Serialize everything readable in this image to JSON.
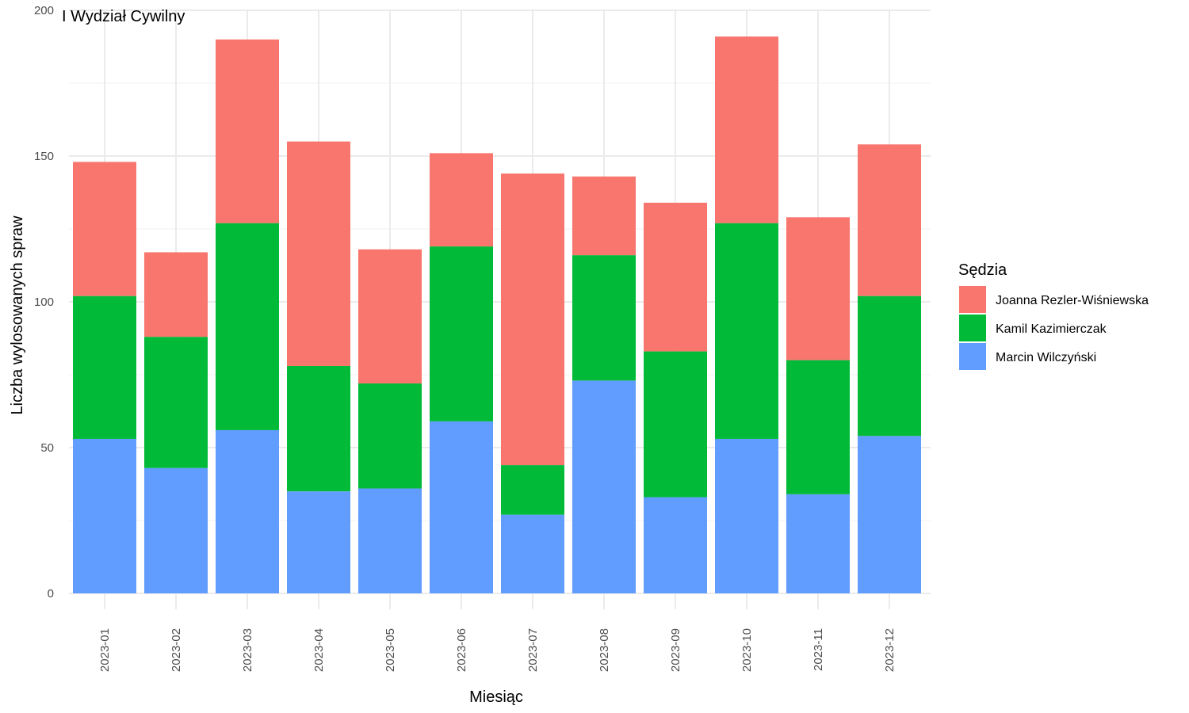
{
  "chart_data": {
    "type": "bar",
    "stacked": true,
    "title": "",
    "facet_label": "I Wydział Cywilny",
    "xlabel": "Miesiąc",
    "ylabel": "Liczba wylosowanych spraw",
    "ylim": [
      0,
      200
    ],
    "y_ticks": [
      0,
      50,
      100,
      150,
      200
    ],
    "grid": true,
    "legend_title": "Sędzia",
    "legend_position": "right",
    "categories": [
      "2023-01",
      "2023-02",
      "2023-03",
      "2023-04",
      "2023-05",
      "2023-06",
      "2023-07",
      "2023-08",
      "2023-09",
      "2023-10",
      "2023-11",
      "2023-12"
    ],
    "series": [
      {
        "name": "Marcin Wilczyński",
        "color": "#619CFF",
        "values": [
          53,
          43,
          56,
          35,
          36,
          59,
          27,
          73,
          33,
          53,
          34,
          54
        ]
      },
      {
        "name": "Kamil Kazimierczak",
        "color": "#00BA38",
        "values": [
          49,
          45,
          71,
          43,
          36,
          60,
          17,
          43,
          50,
          74,
          46,
          48
        ]
      },
      {
        "name": "Joanna Rezler-Wiśniewska",
        "color": "#F8766D",
        "values": [
          46,
          29,
          63,
          77,
          46,
          32,
          100,
          27,
          51,
          64,
          49,
          52
        ]
      }
    ],
    "legend_order": [
      "Joanna Rezler-Wiśniewska",
      "Kamil Kazimierczak",
      "Marcin Wilczyński"
    ]
  }
}
